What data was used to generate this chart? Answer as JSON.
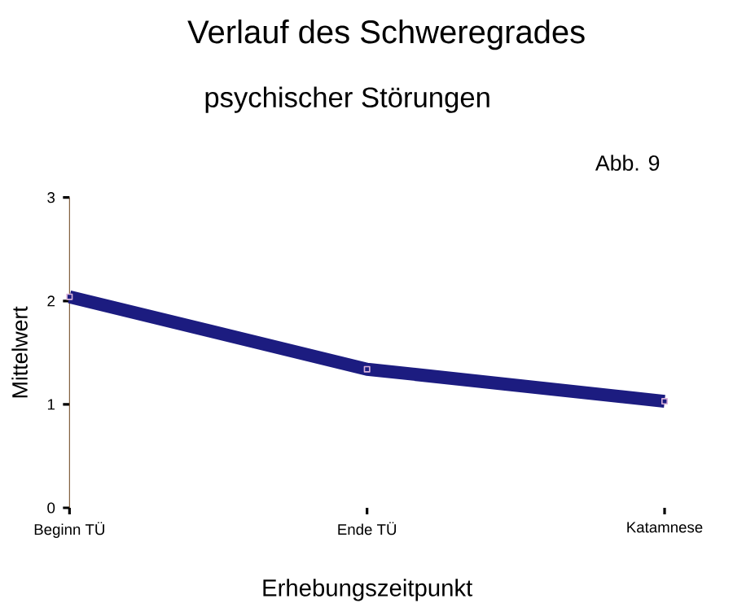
{
  "chart_data": {
    "type": "line",
    "title": "Verlauf des Schweregrades",
    "subtitle": "psychischer Störungen",
    "xlabel": "Erhebungszeitpunkt",
    "ylabel": "Mittelwert",
    "annotations": [
      "Abb. 9"
    ],
    "categories": [
      "Beginn TÜ",
      "Ende TÜ",
      "Katamnese"
    ],
    "series": [
      {
        "color": "#1c1c80",
        "values": [
          2.04,
          1.34,
          1.03
        ]
      }
    ],
    "ylim": [
      0,
      3
    ],
    "yticks": [
      0,
      1,
      2,
      3
    ],
    "marker": "square"
  }
}
